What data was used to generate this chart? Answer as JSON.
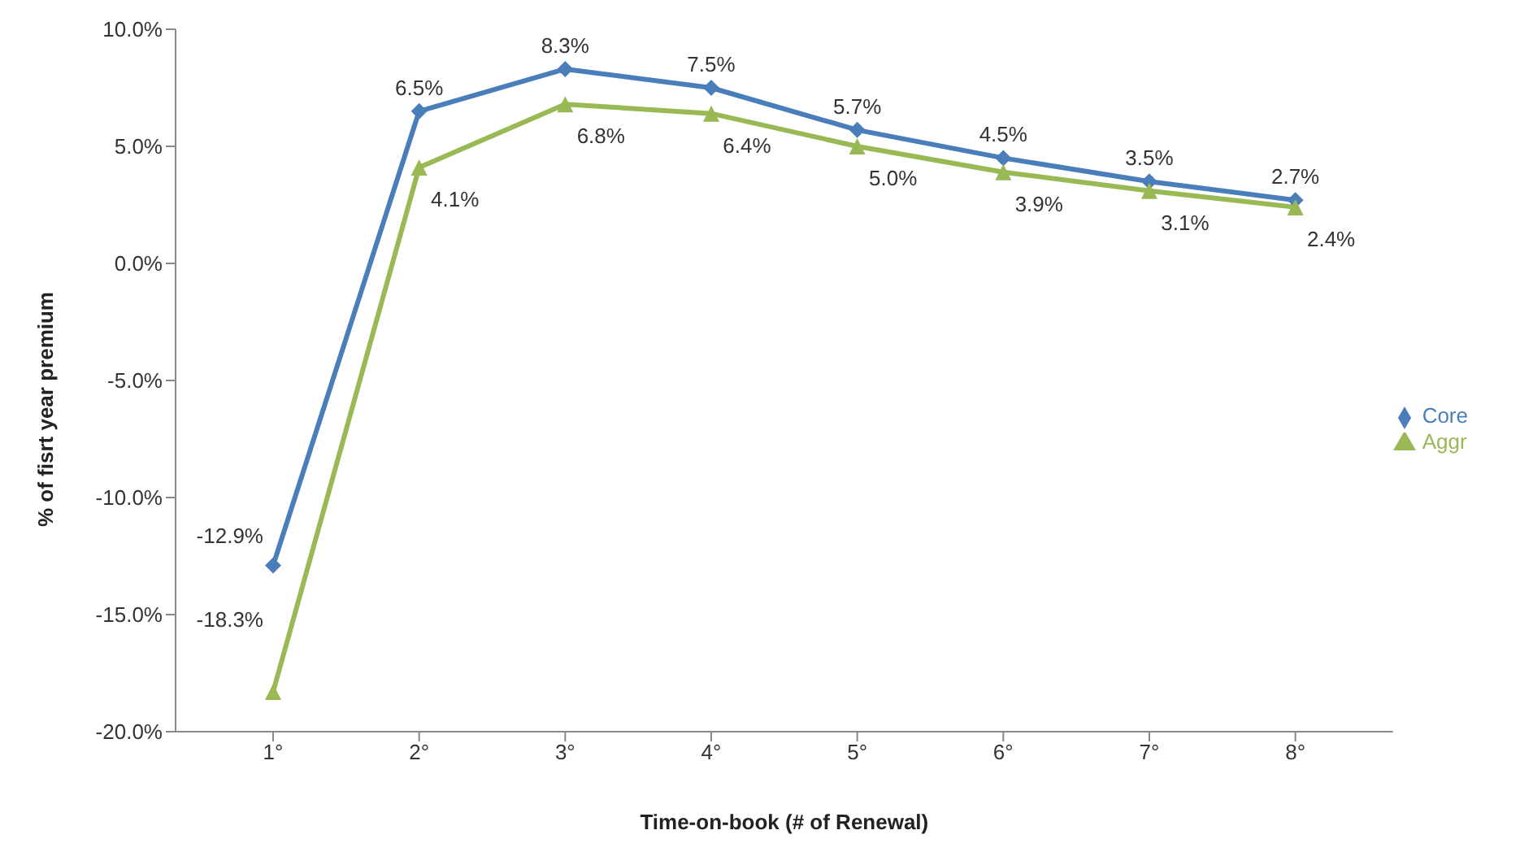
{
  "chart_data": {
    "type": "line",
    "xlabel": "Time-on-book (# of Renewal)",
    "ylabel": "% of fisrt year  premium",
    "categories": [
      "1°",
      "2°",
      "3°",
      "4°",
      "5°",
      "6°",
      "7°",
      "8°"
    ],
    "series": [
      {
        "name": "Core",
        "color": "#4a7ebb",
        "marker": "diamond",
        "values": [
          -12.9,
          6.5,
          8.3,
          7.5,
          5.7,
          4.5,
          3.5,
          2.7
        ],
        "value_labels": [
          "-12.9%",
          "6.5%",
          "8.3%",
          "7.5%",
          "5.7%",
          "4.5%",
          "3.5%",
          "2.7%"
        ]
      },
      {
        "name": "Aggr",
        "color": "#98b954",
        "marker": "triangle",
        "values": [
          -18.3,
          4.1,
          6.8,
          6.4,
          5.0,
          3.9,
          3.1,
          2.4
        ],
        "value_labels": [
          "-18.3%",
          "4.1%",
          "6.8%",
          "6.4%",
          "5.0%",
          "3.9%",
          "3.1%",
          "2.4%"
        ]
      }
    ],
    "ylim": [
      -20,
      10
    ],
    "yticks": [
      {
        "value": -20,
        "label": "-20.0%"
      },
      {
        "value": -15,
        "label": "-15.0%"
      },
      {
        "value": -10,
        "label": "-10.0%"
      },
      {
        "value": -5,
        "label": "-5.0%"
      },
      {
        "value": 0,
        "label": "0.0%"
      },
      {
        "value": 5,
        "label": "5.0%"
      },
      {
        "value": 10,
        "label": "10.0%"
      }
    ],
    "grid": false,
    "legend": "right",
    "line_style": "solid"
  }
}
